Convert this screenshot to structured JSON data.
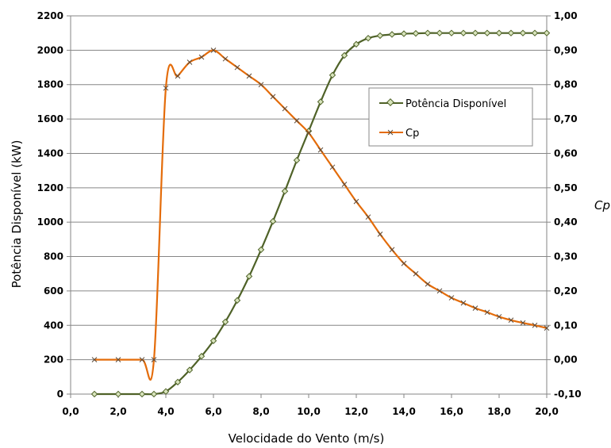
{
  "chart_data": {
    "type": "line",
    "xlabel": "Velocidade do Vento (m/s)",
    "ylabel": "Potência Disponível (kW)",
    "y2label": "Cp",
    "xlim": [
      0,
      20
    ],
    "ylim": [
      0,
      2200
    ],
    "y2lim": [
      -0.1,
      1.0
    ],
    "x_ticks": [
      "0,0",
      "2,0",
      "4,0",
      "6,0",
      "8,0",
      "10,0",
      "12,0",
      "14,0",
      "16,0",
      "18,0",
      "20,0"
    ],
    "y_ticks": [
      "0",
      "200",
      "400",
      "600",
      "800",
      "1000",
      "1200",
      "1400",
      "1600",
      "1800",
      "2000",
      "2200"
    ],
    "y2_ticks": [
      "-0,10",
      "0,00",
      "0,10",
      "0,20",
      "0,30",
      "0,40",
      "0,50",
      "0,60",
      "0,70",
      "0,80",
      "0,90",
      "1,00"
    ],
    "grid": true,
    "legend_position": "right",
    "series": [
      {
        "name": "Potência Disponível",
        "axis": "left",
        "color": "#4f6228",
        "marker": "diamond",
        "x": [
          1,
          2,
          3,
          3.5,
          4,
          4.5,
          5,
          5.5,
          6,
          6.5,
          7,
          7.5,
          8,
          8.5,
          9,
          9.5,
          10,
          10.5,
          11,
          11.5,
          12,
          12.5,
          13,
          13.5,
          14,
          14.5,
          15,
          15.5,
          16,
          16.5,
          17,
          17.5,
          18,
          18.5,
          19,
          19.5,
          20
        ],
        "values": [
          0,
          0,
          0,
          0,
          15,
          70,
          140,
          220,
          310,
          420,
          545,
          685,
          840,
          1005,
          1180,
          1360,
          1530,
          1700,
          1855,
          1970,
          2035,
          2070,
          2085,
          2092,
          2096,
          2098,
          2100,
          2100,
          2100,
          2100,
          2100,
          2100,
          2100,
          2100,
          2100,
          2100,
          2100
        ]
      },
      {
        "name": "Cp",
        "axis": "right",
        "color": "#e46c0a",
        "marker": "x",
        "x": [
          1,
          2,
          3,
          3.5,
          4,
          4.5,
          5,
          5.5,
          6,
          6.5,
          7,
          7.5,
          8,
          8.5,
          9,
          9.5,
          10,
          10.5,
          11,
          11.5,
          12,
          12.5,
          13,
          13.5,
          14,
          14.5,
          15,
          15.5,
          16,
          16.5,
          17,
          17.5,
          18,
          18.5,
          19,
          19.5,
          20
        ],
        "values": [
          0.0,
          0.0,
          0.0,
          0.0,
          0.79,
          0.825,
          0.865,
          0.88,
          0.9,
          0.875,
          0.85,
          0.825,
          0.8,
          0.765,
          0.73,
          0.695,
          0.66,
          0.61,
          0.56,
          0.51,
          0.46,
          0.415,
          0.365,
          0.32,
          0.28,
          0.25,
          0.22,
          0.2,
          0.18,
          0.165,
          0.15,
          0.138,
          0.125,
          0.115,
          0.107,
          0.1,
          0.092
        ]
      }
    ]
  }
}
